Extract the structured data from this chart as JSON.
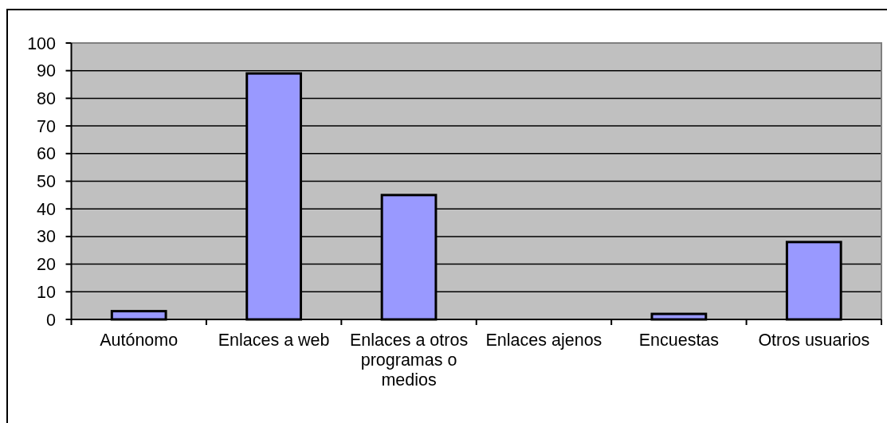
{
  "chart_data": {
    "type": "bar",
    "categories": [
      "Autónomo",
      "Enlaces a web",
      "Enlaces a otros programas o medios",
      "Enlaces ajenos",
      "Encuestas",
      "Otros usuarios"
    ],
    "values": [
      3,
      89,
      45,
      0,
      2,
      28
    ],
    "color": "#9999ff",
    "ylim": [
      0,
      100
    ],
    "yticks": [
      0,
      10,
      20,
      30,
      40,
      50,
      60,
      70,
      80,
      90,
      100
    ],
    "grid": "y"
  }
}
